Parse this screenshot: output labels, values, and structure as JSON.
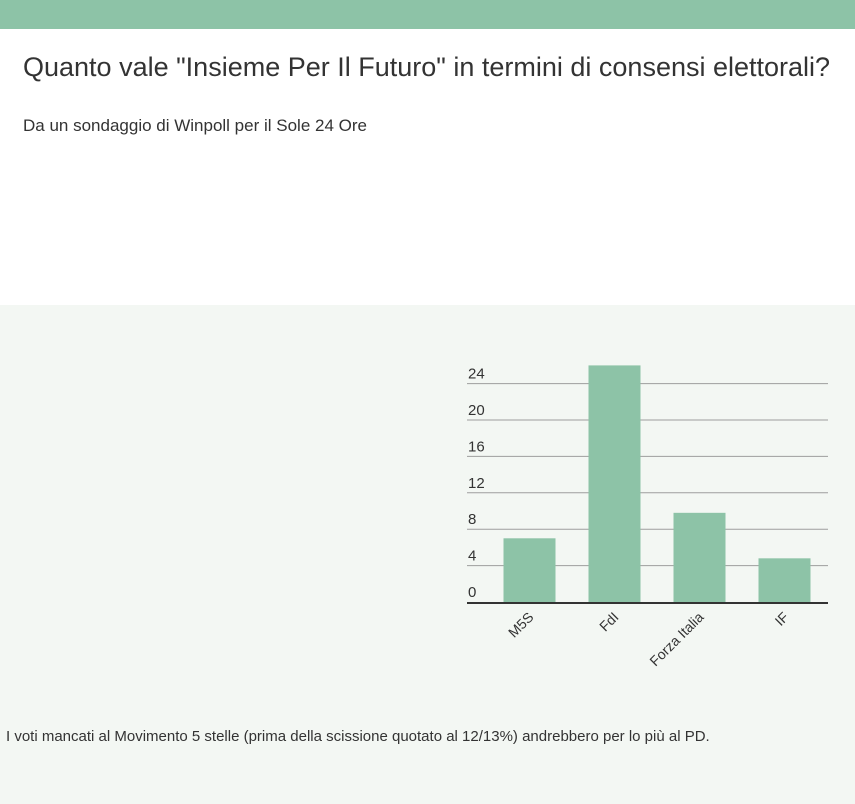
{
  "header": {
    "title": "Quanto vale \"Insieme Per Il Futuro\" in termini di consensi elettorali?",
    "subtitle": "Da un sondaggio di Winpoll per il Sole 24 Ore"
  },
  "footer_note": "I voti mancati al Movimento 5 stelle (prima della scissione quotato al 12/13%) andrebbero per lo più al PD.",
  "colors": {
    "accent": "#8dc3a7",
    "bar": "#8dc3a7",
    "panel_background": "#f3f7f3",
    "grid": "#9e9e9e",
    "axis": "#333333",
    "text": "#333333"
  },
  "chart_data": {
    "type": "bar",
    "categories": [
      "M5S",
      "FdI",
      "Forza Italia",
      "IF"
    ],
    "values": [
      7,
      26,
      9.8,
      4.8
    ],
    "yticks": [
      0,
      4,
      8,
      12,
      16,
      20,
      24
    ],
    "ylim": [
      0,
      26
    ],
    "grid": true,
    "legend": "none"
  }
}
